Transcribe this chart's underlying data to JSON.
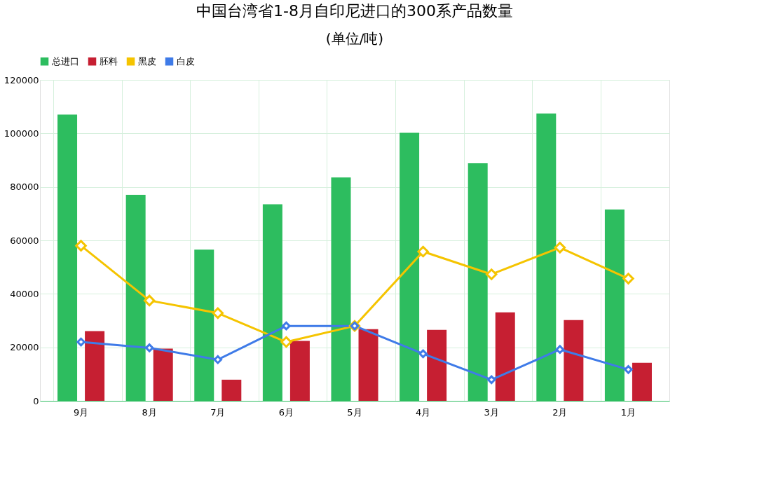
{
  "chart_data": {
    "type": "bar",
    "title": "中国台湾省1-8月自印尼进口的300系产品数量",
    "subtitle": "(单位/吨)",
    "categories": [
      "9月",
      "8月",
      "7月",
      "6月",
      "5月",
      "4月",
      "3月",
      "2月",
      "1月"
    ],
    "series": [
      {
        "name": "总进口",
        "color": "#2dbd5f",
        "values": [
          107000,
          77000,
          56500,
          73500,
          83500,
          100200,
          88800,
          107400,
          71500
        ]
      },
      {
        "name": "胚料",
        "color": "#c61f32",
        "values": [
          26100,
          19500,
          7900,
          22400,
          26800,
          26500,
          33100,
          30200,
          14200
        ]
      },
      {
        "name": "黑皮",
        "color": "#f5c400",
        "type": "line",
        "values": [
          58000,
          37500,
          32800,
          22000,
          28000,
          55800,
          47300,
          57300,
          45700
        ]
      },
      {
        "name": "白皮",
        "color": "#3f7be8",
        "type": "line",
        "values": [
          22000,
          19800,
          15400,
          28000,
          28000,
          17600,
          7900,
          19200,
          11700
        ]
      }
    ],
    "ylim": [
      0,
      120000
    ],
    "yticks": [
      0,
      20000,
      40000,
      60000,
      80000,
      100000,
      120000
    ],
    "grid": true,
    "legend": "top",
    "marker": "diamond",
    "line_style": "solid"
  }
}
